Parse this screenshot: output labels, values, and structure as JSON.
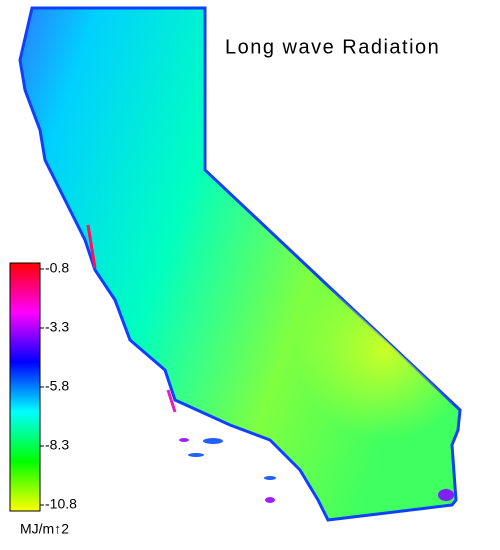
{
  "title": "Long wave Radiation",
  "colorbar": {
    "lim": [
      -10.8,
      -0.8
    ],
    "ticks": [
      -0.8,
      -3.3,
      -5.8,
      -8.3,
      -10.8
    ],
    "unit": "MJ/m↑2",
    "colors": [
      "#ffff00",
      "#00ff00",
      "#00ffff",
      "#0000ff",
      "#ff00ff",
      "#ff0000"
    ]
  }
}
